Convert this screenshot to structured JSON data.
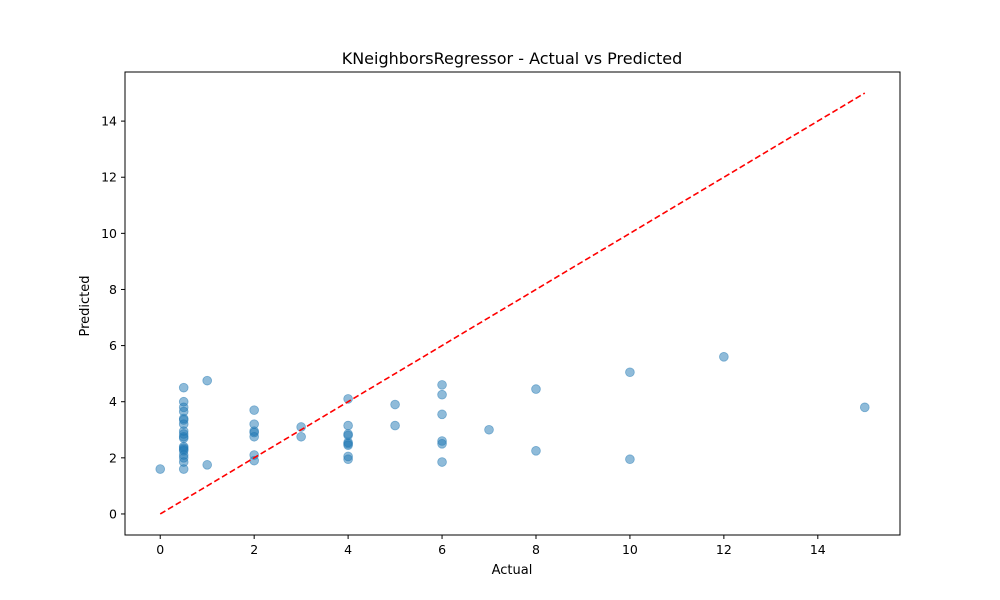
{
  "chart_data": {
    "type": "scatter",
    "title": "KNeighborsRegressor - Actual vs Predicted",
    "xlabel": "Actual",
    "ylabel": "Predicted",
    "xlim": [
      -0.75,
      15.75
    ],
    "ylim": [
      -0.75,
      15.75
    ],
    "xticks": [
      0,
      2,
      4,
      6,
      8,
      10,
      12,
      14
    ],
    "yticks": [
      0,
      2,
      4,
      6,
      8,
      10,
      12,
      14
    ],
    "grid": false,
    "colors": {
      "points": "#1f77b4",
      "reference_line": "#ff0000"
    },
    "reference_line": {
      "style": "dashed",
      "x": [
        0,
        15
      ],
      "y": [
        0,
        15
      ]
    },
    "series": [
      {
        "points": [
          [
            0,
            1.6
          ],
          [
            0.5,
            4.5
          ],
          [
            0.5,
            4.0
          ],
          [
            0.5,
            3.8
          ],
          [
            0.5,
            3.65
          ],
          [
            0.5,
            3.4
          ],
          [
            0.5,
            3.35
          ],
          [
            0.5,
            3.2
          ],
          [
            0.5,
            2.95
          ],
          [
            0.5,
            2.85
          ],
          [
            0.5,
            2.75
          ],
          [
            0.5,
            2.7
          ],
          [
            0.5,
            2.4
          ],
          [
            0.5,
            2.35
          ],
          [
            0.5,
            2.3
          ],
          [
            0.5,
            2.25
          ],
          [
            0.5,
            2.1
          ],
          [
            0.5,
            2.0
          ],
          [
            0.5,
            1.85
          ],
          [
            0.5,
            1.6
          ],
          [
            1,
            4.75
          ],
          [
            1,
            1.75
          ],
          [
            2,
            3.7
          ],
          [
            2,
            3.2
          ],
          [
            2,
            2.95
          ],
          [
            2,
            2.9
          ],
          [
            2,
            2.75
          ],
          [
            2,
            2.1
          ],
          [
            2,
            1.9
          ],
          [
            3,
            3.1
          ],
          [
            3,
            2.75
          ],
          [
            4,
            4.1
          ],
          [
            4,
            3.15
          ],
          [
            4,
            2.85
          ],
          [
            4,
            2.8
          ],
          [
            4,
            2.55
          ],
          [
            4,
            2.5
          ],
          [
            4,
            2.45
          ],
          [
            4,
            2.05
          ],
          [
            4,
            1.95
          ],
          [
            5,
            3.9
          ],
          [
            5,
            3.15
          ],
          [
            6,
            4.6
          ],
          [
            6,
            4.25
          ],
          [
            6,
            3.55
          ],
          [
            6,
            2.6
          ],
          [
            6,
            2.5
          ],
          [
            6,
            1.85
          ],
          [
            7,
            3.0
          ],
          [
            8,
            4.45
          ],
          [
            8,
            2.25
          ],
          [
            10,
            5.05
          ],
          [
            10,
            1.95
          ],
          [
            12,
            5.6
          ],
          [
            15,
            3.8
          ]
        ]
      }
    ]
  }
}
